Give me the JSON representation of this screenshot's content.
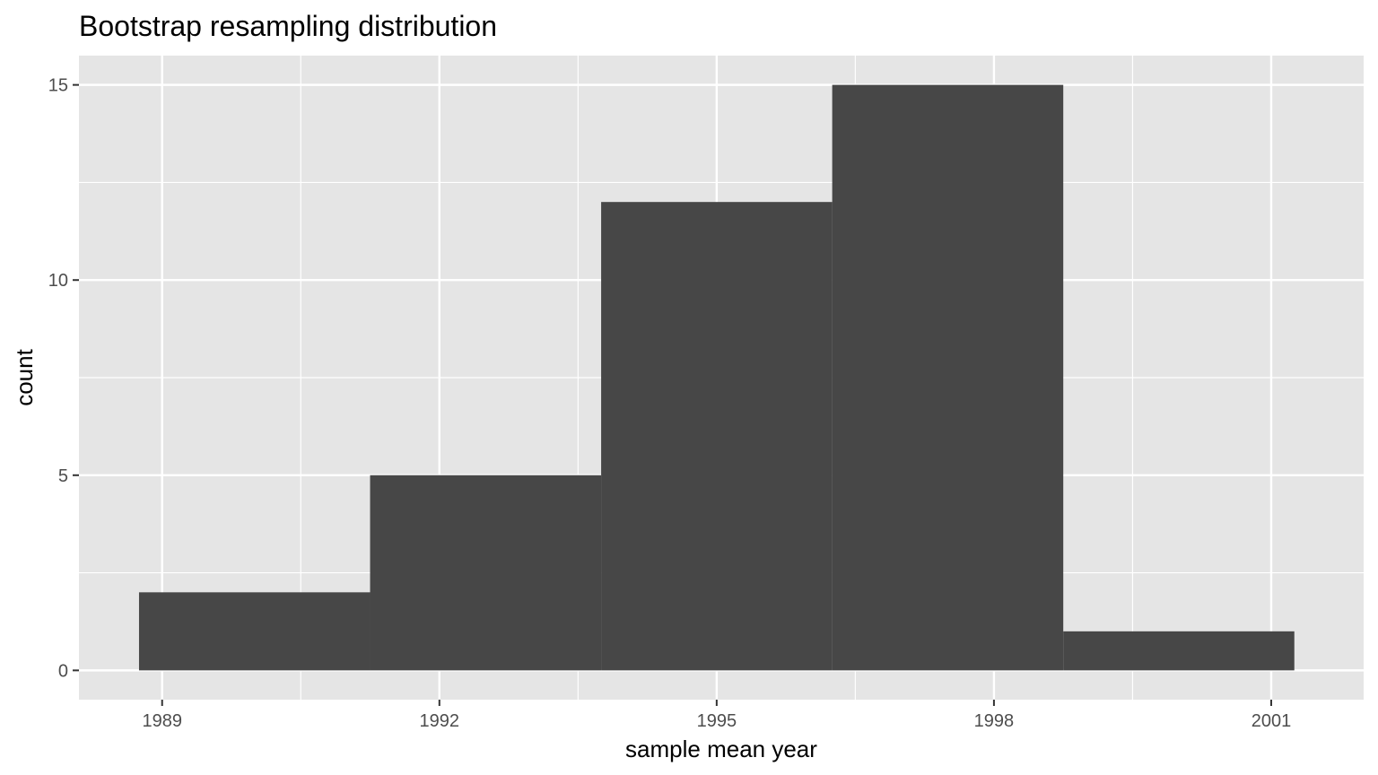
{
  "chart_data": {
    "type": "bar",
    "title": "Bootstrap resampling distribution",
    "xlabel": "sample mean year",
    "ylabel": "count",
    "bins": [
      {
        "x_start": 1988.75,
        "x_end": 1991.25,
        "count": 2
      },
      {
        "x_start": 1991.25,
        "x_end": 1993.75,
        "count": 5
      },
      {
        "x_start": 1993.75,
        "x_end": 1996.25,
        "count": 12
      },
      {
        "x_start": 1996.25,
        "x_end": 1998.75,
        "count": 15
      },
      {
        "x_start": 1998.75,
        "x_end": 2001.25,
        "count": 1
      }
    ],
    "xlim": [
      1988.1,
      2002.0
    ],
    "ylim": [
      -0.75,
      15.75
    ],
    "x_ticks": [
      1989,
      1992,
      1995,
      1998,
      2001
    ],
    "x_tick_labels": [
      "1989",
      "1992",
      "1995",
      "1998",
      "2001"
    ],
    "y_ticks": [
      0,
      5,
      10,
      15
    ],
    "y_tick_labels": [
      "0",
      "5",
      "10",
      "15"
    ],
    "grid": true,
    "colors": {
      "panel_background": "#e5e5e5",
      "grid_line": "#ffffff",
      "bar_fill": "#474747",
      "tick_text": "#4d4d4d",
      "axis_tick": "#333333"
    }
  }
}
